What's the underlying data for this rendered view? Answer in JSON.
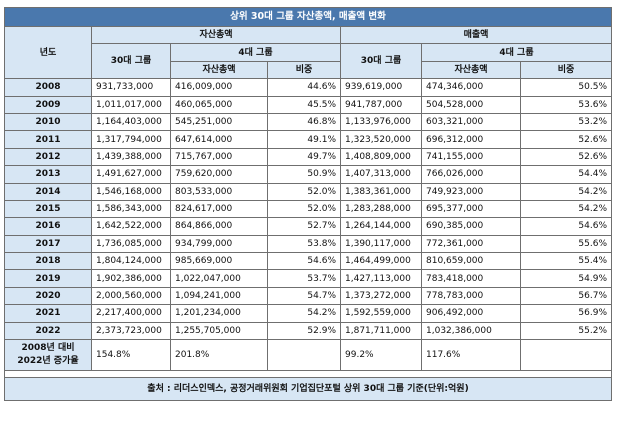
{
  "title": "상위 30대 그룹 자산총액, 매출액 변화",
  "headers": {
    "year": "년도",
    "assets": "자산총액",
    "sales": "매출액",
    "top30": "30대 그룹",
    "top4": "4대 그룹",
    "total_assets": "자산총액",
    "share": "비중",
    "sales_top30": "30대 그룹",
    "sales_top4": "4대 그룹",
    "sales_total": "자산총액",
    "sales_share": "비중"
  },
  "rows": [
    {
      "year": "2008",
      "a30": "931,733,000",
      "a4": "416,009,000",
      "ashare": "44.6%",
      "s30": "939,619,000",
      "s4": "474,346,000",
      "sshare": "50.5%"
    },
    {
      "year": "2009",
      "a30": "1,011,017,000",
      "a4": "460,065,000",
      "ashare": "45.5%",
      "s30": "941,787,000",
      "s4": "504,528,000",
      "sshare": "53.6%"
    },
    {
      "year": "2010",
      "a30": "1,164,403,000",
      "a4": "545,251,000",
      "ashare": "46.8%",
      "s30": "1,133,976,000",
      "s4": "603,321,000",
      "sshare": "53.2%"
    },
    {
      "year": "2011",
      "a30": "1,317,794,000",
      "a4": "647,614,000",
      "ashare": "49.1%",
      "s30": "1,323,520,000",
      "s4": "696,312,000",
      "sshare": "52.6%"
    },
    {
      "year": "2012",
      "a30": "1,439,388,000",
      "a4": "715,767,000",
      "ashare": "49.7%",
      "s30": "1,408,809,000",
      "s4": "741,155,000",
      "sshare": "52.6%"
    },
    {
      "year": "2013",
      "a30": "1,491,627,000",
      "a4": "759,620,000",
      "ashare": "50.9%",
      "s30": "1,407,313,000",
      "s4": "766,026,000",
      "sshare": "54.4%"
    },
    {
      "year": "2014",
      "a30": "1,546,168,000",
      "a4": "803,533,000",
      "ashare": "52.0%",
      "s30": "1,383,361,000",
      "s4": "749,923,000",
      "sshare": "54.2%"
    },
    {
      "year": "2015",
      "a30": "1,586,343,000",
      "a4": "824,617,000",
      "ashare": "52.0%",
      "s30": "1,283,288,000",
      "s4": "695,377,000",
      "sshare": "54.2%"
    },
    {
      "year": "2016",
      "a30": "1,642,522,000",
      "a4": "864,866,000",
      "ashare": "52.7%",
      "s30": "1,264,144,000",
      "s4": "690,385,000",
      "sshare": "54.6%"
    },
    {
      "year": "2017",
      "a30": "1,736,085,000",
      "a4": "934,799,000",
      "ashare": "53.8%",
      "s30": "1,390,117,000",
      "s4": "772,361,000",
      "sshare": "55.6%"
    },
    {
      "year": "2018",
      "a30": "1,804,124,000",
      "a4": "985,669,000",
      "ashare": "54.6%",
      "s30": "1,464,499,000",
      "s4": "810,659,000",
      "sshare": "55.4%"
    },
    {
      "year": "2019",
      "a30": "1,902,386,000",
      "a4": "1,022,047,000",
      "ashare": "53.7%",
      "s30": "1,427,113,000",
      "s4": "783,418,000",
      "sshare": "54.9%"
    },
    {
      "year": "2020",
      "a30": "2,000,560,000",
      "a4": "1,094,241,000",
      "ashare": "54.7%",
      "s30": "1,373,272,000",
      "s4": "778,783,000",
      "sshare": "56.7%"
    },
    {
      "year": "2021",
      "a30": "2,217,400,000",
      "a4": "1,201,234,000",
      "ashare": "54.2%",
      "s30": "1,592,559,000",
      "s4": "906,492,000",
      "sshare": "56.9%"
    },
    {
      "year": "2022",
      "a30": "2,373,723,000",
      "a4": "1,255,705,000",
      "ashare": "52.9%",
      "s30": "1,871,711,000",
      "s4": "1,032,386,000",
      "sshare": "55.2%"
    }
  ],
  "growth": {
    "label_line1": "2008년 대비",
    "label_line2": "2022년 증가율",
    "a30": "154.8%",
    "a4": "201.8%",
    "s30": "99.2%",
    "s4": "117.6%"
  },
  "source": "출처 : 리더스인덱스, 공정거래위원회 기업집단포털 상위 30대 그룹 기준(단위:억원)",
  "colors": {
    "title_bg": "#4a78ad",
    "header_bg": "#d7e6f4",
    "border": "#6f6f6f"
  }
}
